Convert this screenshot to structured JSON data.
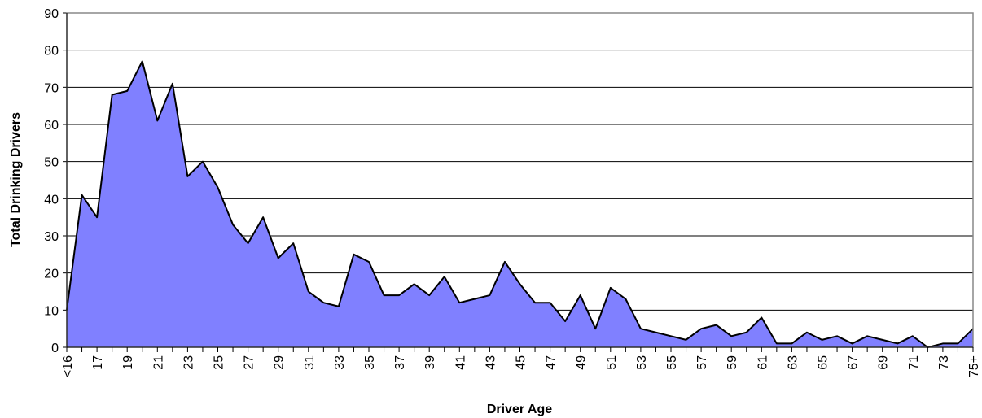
{
  "chart_data": {
    "type": "area",
    "x_label": "Driver Age",
    "y_label": "Total Drinking Drivers",
    "categories": [
      "<16",
      null,
      "17",
      null,
      "19",
      null,
      "21",
      null,
      "23",
      null,
      "25",
      null,
      "27",
      null,
      "29",
      null,
      "31",
      null,
      "33",
      null,
      "35",
      null,
      "37",
      null,
      "39",
      null,
      "41",
      null,
      "43",
      null,
      "45",
      null,
      "47",
      null,
      "49",
      null,
      "51",
      null,
      "53",
      null,
      "55",
      null,
      "57",
      null,
      "59",
      null,
      "61",
      null,
      "63",
      null,
      "65",
      null,
      "67",
      null,
      "69",
      null,
      "71",
      null,
      "73",
      null,
      "75+"
    ],
    "values": [
      10,
      41,
      35,
      68,
      69,
      77,
      61,
      71,
      46,
      50,
      43,
      33,
      28,
      35,
      24,
      28,
      15,
      12,
      11,
      25,
      23,
      14,
      14,
      17,
      14,
      19,
      12,
      13,
      14,
      23,
      17,
      12,
      12,
      7,
      14,
      5,
      16,
      13,
      5,
      4,
      3,
      2,
      5,
      6,
      3,
      4,
      8,
      1,
      1,
      4,
      2,
      3,
      1,
      3,
      2,
      1,
      3,
      0,
      1,
      1,
      5
    ],
    "color": "#8080ff",
    "ylim": [
      0,
      90
    ],
    "yticks": [
      0,
      10,
      20,
      30,
      40,
      50,
      60,
      70,
      80,
      90
    ],
    "grid": true
  }
}
